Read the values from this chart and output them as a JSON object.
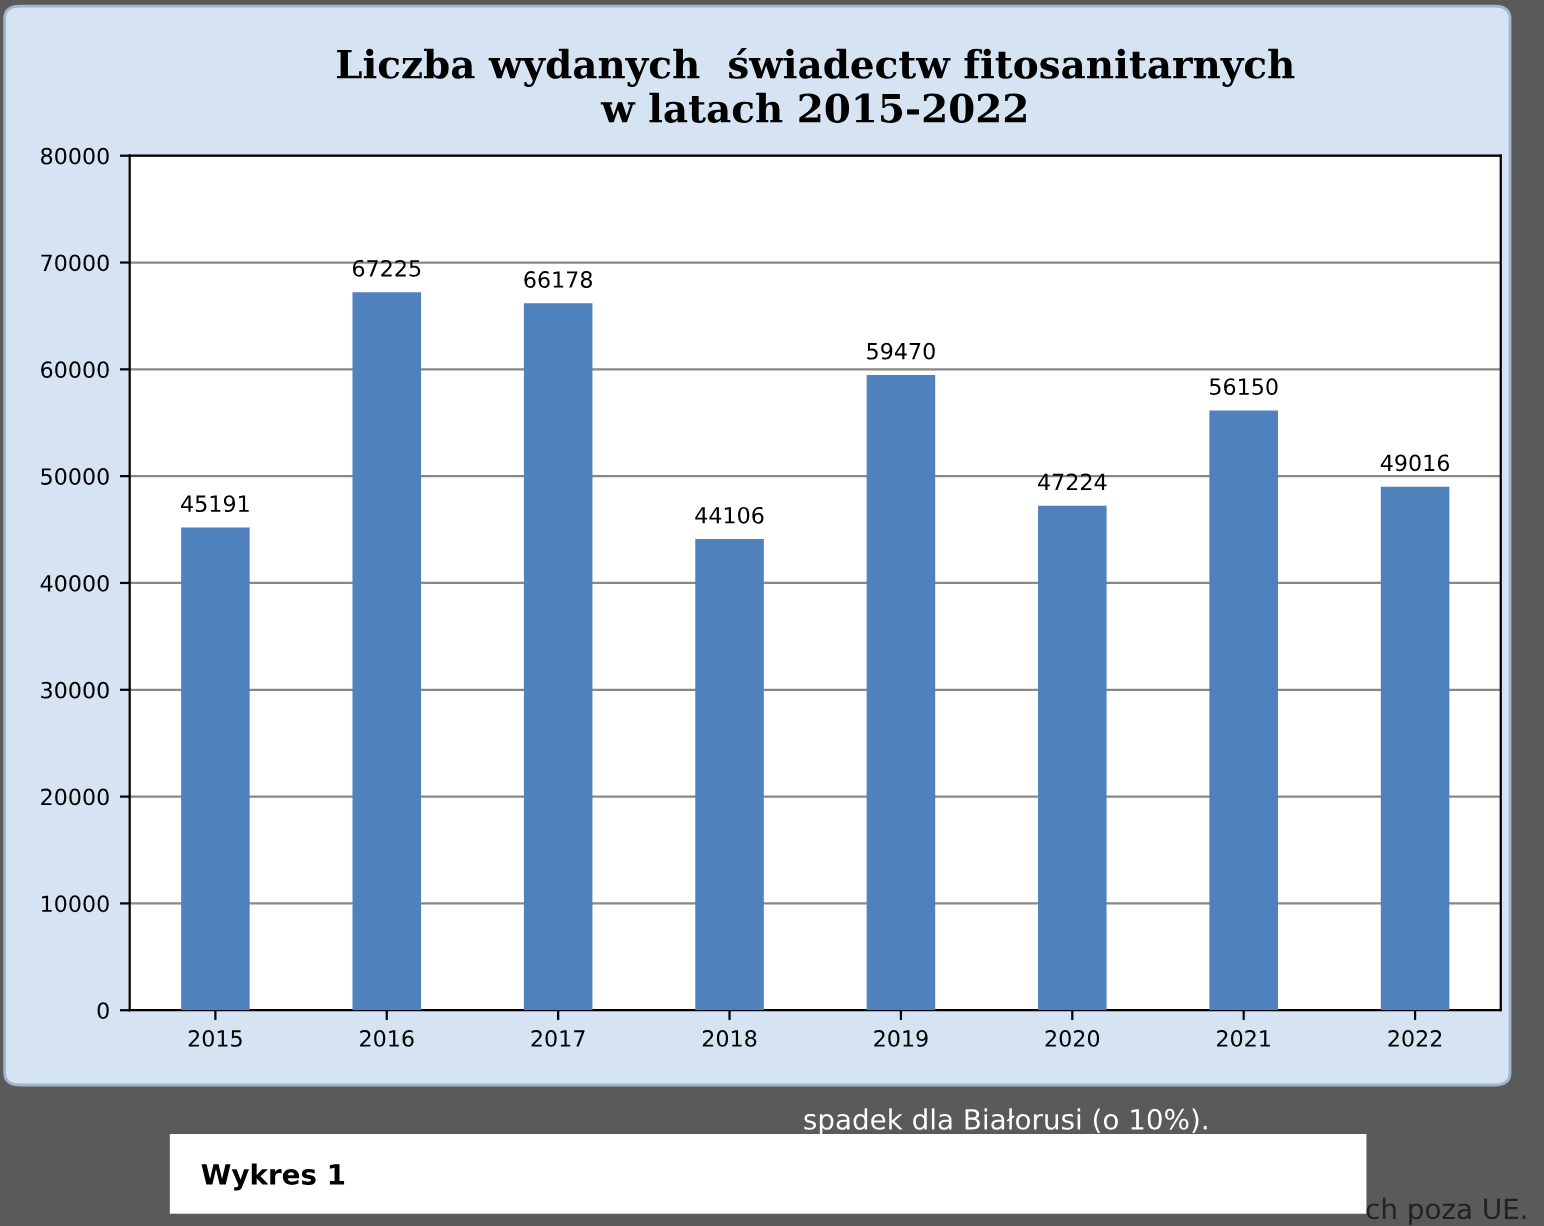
{
  "chart_data": {
    "type": "bar",
    "title": "Liczba wydanych  świadectw fitosanitarnych\nw latach 2015-2022",
    "categories": [
      "2015",
      "2016",
      "2017",
      "2018",
      "2019",
      "2020",
      "2021",
      "2022"
    ],
    "values": [
      45191,
      67225,
      66178,
      44106,
      59470,
      47224,
      56150,
      49016
    ],
    "color": "#4f81bd",
    "ylim": [
      0,
      80000
    ],
    "yticks": [
      0,
      10000,
      20000,
      30000,
      40000,
      50000,
      60000,
      70000,
      80000
    ],
    "grid": "y",
    "data_labels": true,
    "annotations": [
      "spadek dla Białorusi (o 10%).",
      "Wykres 1",
      "ch poza UE."
    ]
  }
}
